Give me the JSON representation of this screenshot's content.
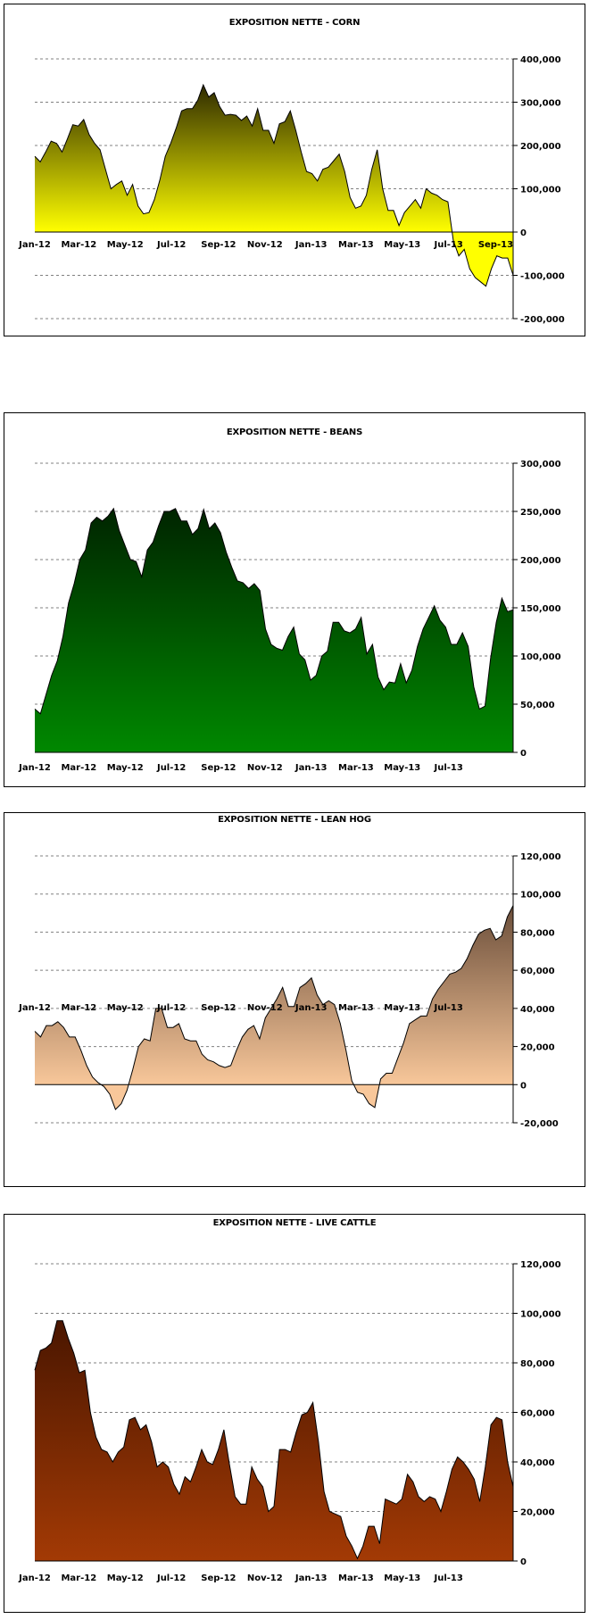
{
  "chart_data": [
    {
      "type": "area",
      "title": "EXPOSITION NETTE - CORN",
      "xlabel": "",
      "ylabel": "",
      "x_tick_labels": [
        "Jan-12",
        "Mar-12",
        "May-12",
        "Jul-12",
        "Sep-12",
        "Nov-12",
        "Jan-13",
        "Mar-13",
        "May-13",
        "Jul-13",
        "Sep-13"
      ],
      "y_tick_labels": [
        "400,000",
        "300,000",
        "200,000",
        "100,000",
        "0",
        "-100,000",
        "-200,000"
      ],
      "ylim": [
        -200000,
        400000
      ],
      "x_start": "2012-01-03",
      "x_end": "2013-09-24",
      "grid": true,
      "colors": {
        "top": "#2f2b00",
        "bottom": "#ffff00"
      },
      "values": [
        175000,
        162000,
        185000,
        210000,
        205000,
        185000,
        215000,
        248000,
        245000,
        260000,
        225000,
        205000,
        190000,
        145000,
        100000,
        110000,
        118000,
        85000,
        110000,
        60000,
        42000,
        45000,
        75000,
        120000,
        175000,
        205000,
        240000,
        280000,
        285000,
        285000,
        305000,
        340000,
        312000,
        322000,
        290000,
        270000,
        272000,
        270000,
        258000,
        268000,
        245000,
        285000,
        235000,
        235000,
        205000,
        250000,
        255000,
        280000,
        235000,
        185000,
        140000,
        135000,
        118000,
        145000,
        150000,
        165000,
        180000,
        140000,
        80000,
        55000,
        60000,
        85000,
        145000,
        190000,
        100000,
        50000,
        50000,
        15000,
        45000,
        60000,
        75000,
        55000,
        100000,
        90000,
        85000,
        75000,
        70000,
        -20000,
        -55000,
        -40000,
        -85000,
        -105000,
        -115000,
        -125000,
        -85000,
        -55000,
        -60000,
        -60000,
        -100000
      ]
    },
    {
      "type": "area",
      "title": "EXPOSITION NETTE - BEANS",
      "xlabel": "",
      "ylabel": "",
      "x_tick_labels": [
        "Jan-12",
        "Mar-12",
        "May-12",
        "Jul-12",
        "Sep-12",
        "Nov-12",
        "Jan-13",
        "Mar-13",
        "May-13",
        "Jul-13"
      ],
      "y_tick_labels": [
        "300,000",
        "250,000",
        "200,000",
        "150,000",
        "100,000",
        "50,000",
        "0"
      ],
      "ylim": [
        0,
        300000
      ],
      "x_start": "2012-01-03",
      "x_end": "2013-09-24",
      "grid": true,
      "colors": {
        "top": "#002400",
        "bottom": "#008800"
      },
      "values": [
        45000,
        40000,
        60000,
        80000,
        95000,
        120000,
        155000,
        175000,
        200000,
        210000,
        238000,
        244000,
        240000,
        245000,
        253000,
        230000,
        215000,
        200000,
        198000,
        182000,
        210000,
        218000,
        235000,
        250000,
        250000,
        253000,
        240000,
        240000,
        226000,
        232000,
        252000,
        232000,
        238000,
        228000,
        208000,
        192000,
        178000,
        176000,
        170000,
        175000,
        168000,
        128000,
        112000,
        108000,
        106000,
        120000,
        130000,
        102000,
        96000,
        75000,
        80000,
        100000,
        105000,
        135000,
        135000,
        126000,
        124000,
        128000,
        140000,
        102000,
        112000,
        78000,
        65000,
        73000,
        72000,
        92000,
        72000,
        85000,
        110000,
        128000,
        140000,
        152000,
        137000,
        130000,
        112000,
        112000,
        124000,
        110000,
        68000,
        45000,
        48000,
        98000,
        135000,
        160000,
        146000,
        148000
      ]
    },
    {
      "type": "area",
      "title": "EXPOSITION NETTE - LEAN HOG",
      "xlabel": "",
      "ylabel": "",
      "x_tick_labels": [
        "Jan-12",
        "Mar-12",
        "May-12",
        "Jul-12",
        "Sep-12",
        "Nov-12",
        "Jan-13",
        "Mar-13",
        "May-13",
        "Jul-13"
      ],
      "y_tick_labels": [
        "120,000",
        "100,000",
        "80,000",
        "60,000",
        "40,000",
        "20,000",
        "0",
        "-20,000"
      ],
      "ylim": [
        -20000,
        120000
      ],
      "x_start": "2012-01-03",
      "x_end": "2013-09-24",
      "grid": true,
      "colors": {
        "top": "#6b4e3a",
        "bottom": "#f8c79a"
      },
      "values": [
        28000,
        25000,
        31000,
        31000,
        33000,
        30000,
        25000,
        25000,
        18000,
        10000,
        4000,
        1000,
        -1000,
        -5000,
        -13000,
        -10000,
        -3000,
        8000,
        20000,
        24000,
        23000,
        40000,
        40000,
        30000,
        30000,
        32000,
        24000,
        23000,
        23000,
        16000,
        13000,
        12000,
        10000,
        9000,
        10000,
        18000,
        25000,
        29000,
        31000,
        24000,
        35000,
        40000,
        45000,
        51000,
        41000,
        41000,
        51000,
        53000,
        56000,
        47000,
        42000,
        44000,
        42000,
        32000,
        18000,
        2000,
        -4000,
        -5000,
        -10000,
        -12000,
        3000,
        6000,
        6000,
        14000,
        22000,
        32000,
        34000,
        36000,
        36000,
        45000,
        50000,
        54000,
        58000,
        59000,
        61000,
        66000,
        73000,
        79000,
        81000,
        82000,
        76000,
        78000,
        88000,
        94000
      ]
    },
    {
      "type": "area",
      "title": "EXPOSITION NETTE - LIVE CATTLE",
      "xlabel": "",
      "ylabel": "",
      "x_tick_labels": [
        "Jan-12",
        "Mar-12",
        "May-12",
        "Jul-12",
        "Sep-12",
        "Nov-12",
        "Jan-13",
        "Mar-13",
        "May-13",
        "Jul-13"
      ],
      "y_tick_labels": [
        "120,000",
        "100,000",
        "80,000",
        "60,000",
        "40,000",
        "20,000",
        "0"
      ],
      "ylim": [
        0,
        120000
      ],
      "x_start": "2012-01-03",
      "x_end": "2013-09-24",
      "grid": true,
      "colors": {
        "top": "#4a1600",
        "bottom": "#a33a05"
      },
      "values": [
        77000,
        85000,
        86000,
        88000,
        97000,
        97000,
        90000,
        84000,
        76000,
        77000,
        60000,
        50000,
        45000,
        44000,
        40000,
        44000,
        46000,
        57000,
        58000,
        53000,
        55000,
        48000,
        38000,
        40000,
        38000,
        31000,
        27000,
        34000,
        32000,
        38000,
        45000,
        40000,
        39000,
        45000,
        53000,
        39000,
        26000,
        23000,
        23000,
        38000,
        33000,
        30000,
        20000,
        22000,
        45000,
        45000,
        44000,
        52000,
        59000,
        60000,
        64000,
        48000,
        28000,
        20000,
        19000,
        18000,
        10000,
        6000,
        1000,
        6000,
        14000,
        14000,
        7000,
        25000,
        24000,
        23000,
        25000,
        35000,
        32000,
        26000,
        24000,
        26000,
        25000,
        20000,
        28000,
        37000,
        42000,
        40000,
        37000,
        33000,
        24000,
        38000,
        55000,
        58000,
        57000,
        40000,
        30000
      ]
    }
  ]
}
